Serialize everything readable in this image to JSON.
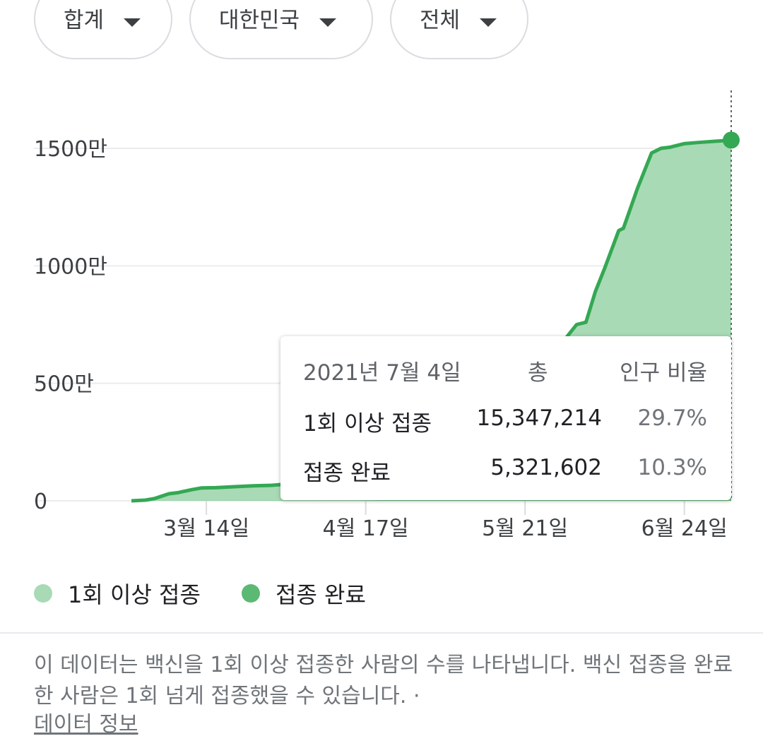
{
  "filters": [
    {
      "label": "합계"
    },
    {
      "label": "대한민국"
    },
    {
      "label": "전체"
    }
  ],
  "colors": {
    "completed_line": "#34a853",
    "first_dose_fill": "#a8dab5",
    "completed_fill": "#5bb974",
    "grid": "#ececec"
  },
  "chart_data": {
    "type": "area",
    "y_unit": "만",
    "ylim": [
      0,
      1530
    ],
    "y_ticks": [
      0,
      500,
      1000,
      1500
    ],
    "y_tick_labels": [
      "0",
      "500만",
      "1000만",
      "1500만"
    ],
    "x_tick_labels": [
      "3월 14일",
      "4월 17일",
      "5월 21일",
      "6월 24일"
    ],
    "grid": true,
    "legend_position": "bottom",
    "series": [
      {
        "name": "1회 이상 접종",
        "color": "#a8dab5",
        "points": [
          [
            "2021-02-26",
            0
          ],
          [
            "2021-03-01",
            3
          ],
          [
            "2021-03-03",
            10
          ],
          [
            "2021-03-06",
            30
          ],
          [
            "2021-03-08",
            35
          ],
          [
            "2021-03-11",
            48
          ],
          [
            "2021-03-13",
            55
          ],
          [
            "2021-03-16",
            56
          ],
          [
            "2021-03-20",
            60
          ],
          [
            "2021-03-24",
            64
          ],
          [
            "2021-03-28",
            66
          ],
          [
            "2021-04-02",
            74
          ],
          [
            "2021-04-06",
            80
          ],
          [
            "2021-04-15",
            90
          ],
          [
            "2021-04-25",
            110
          ],
          [
            "2021-05-05",
            200
          ],
          [
            "2021-05-15",
            300
          ],
          [
            "2021-05-25",
            500
          ],
          [
            "2021-05-30",
            700
          ],
          [
            "2021-06-01",
            750
          ],
          [
            "2021-06-03",
            760
          ],
          [
            "2021-06-05",
            890
          ],
          [
            "2021-06-07",
            990
          ],
          [
            "2021-06-10",
            1150
          ],
          [
            "2021-06-11",
            1160
          ],
          [
            "2021-06-14",
            1330
          ],
          [
            "2021-06-17",
            1480
          ],
          [
            "2021-06-19",
            1500
          ],
          [
            "2021-06-21",
            1505
          ],
          [
            "2021-06-24",
            1520
          ],
          [
            "2021-06-27",
            1525
          ],
          [
            "2021-07-04",
            1535
          ]
        ]
      },
      {
        "name": "접종 완료",
        "color": "#5bb974",
        "points": [
          [
            "2021-02-26",
            0
          ],
          [
            "2021-04-15",
            1
          ],
          [
            "2021-04-25",
            5
          ],
          [
            "2021-05-15",
            20
          ],
          [
            "2021-06-01",
            150
          ],
          [
            "2021-06-15",
            380
          ],
          [
            "2021-06-25",
            480
          ],
          [
            "2021-07-04",
            532
          ]
        ]
      }
    ]
  },
  "tooltip": {
    "date": "2021년 7월 4일",
    "col_total": "총",
    "col_ratio": "인구 비율",
    "rows": [
      {
        "label": "1회 이상 접종",
        "total": "15,347,214",
        "ratio": "29.7%"
      },
      {
        "label": "접종 완료",
        "total": "5,321,602",
        "ratio": "10.3%"
      }
    ]
  },
  "legend": [
    {
      "label": "1회 이상 접종",
      "color": "#a8dab5"
    },
    {
      "label": "접종 완료",
      "color": "#5bb974"
    }
  ],
  "note": "이 데이터는 백신을 1회 이상 접종한 사람의 수를 나타냅니다. 백신 접종을 완료한 사람은 1회 넘게 접종했을 수 있습니다.  ·",
  "data_link": "데이터 정보"
}
